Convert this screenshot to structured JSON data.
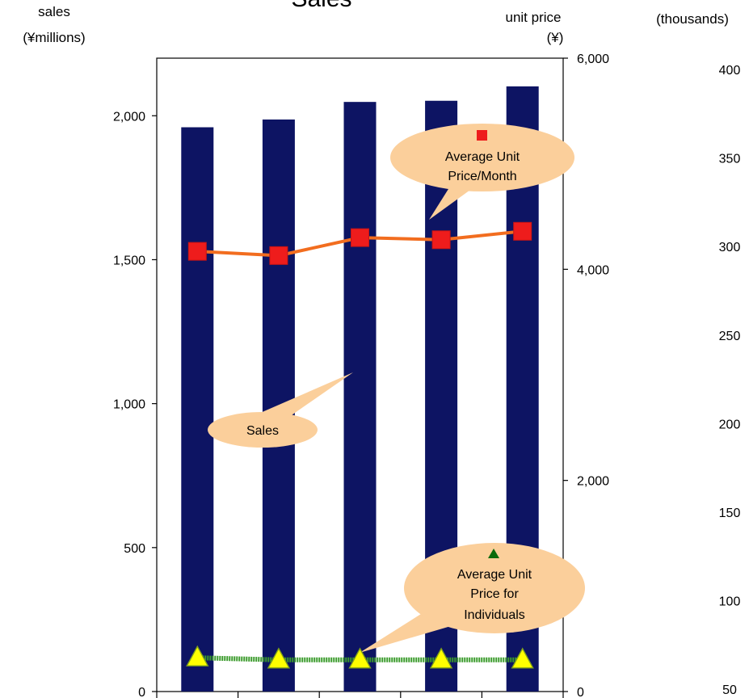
{
  "chart_data": {
    "type": "bar",
    "title": "Sales",
    "left_axis": {
      "label_line1": "sales",
      "label_line2": "(¥millions)",
      "ylim": [
        0,
        2200
      ],
      "ticks": [
        "0",
        "500",
        "1,000",
        "1,500",
        "2,000"
      ],
      "tick_values": [
        0,
        500,
        1000,
        1500,
        2000
      ]
    },
    "right_axis": {
      "label_line1": "unit price",
      "label_line2": "(¥)",
      "ylim": [
        0,
        6000
      ],
      "ticks": [
        "0",
        "2,000",
        "4,000",
        "6,000"
      ],
      "tick_values": [
        0,
        2000,
        4000,
        6000
      ]
    },
    "far_right_axis": {
      "label": "(thousands)",
      "ticks": [
        "50",
        "100",
        "150",
        "200",
        "250",
        "300",
        "350",
        "400"
      ]
    },
    "categories": [
      "",
      "",
      "",
      "",
      ""
    ],
    "series": [
      {
        "name": "Sales",
        "kind": "bar",
        "axis": "left",
        "color": "#0d1463",
        "values": [
          1960,
          1987,
          2048,
          2052,
          2102
        ]
      },
      {
        "name": "Average Unit Price/Month",
        "kind": "line",
        "axis": "right",
        "color": "#f26d1f",
        "marker": "square",
        "marker_color": "#ee1c1c",
        "values": [
          4170,
          4130,
          4300,
          4280,
          4360
        ]
      },
      {
        "name": "Average Unit Price for Individuals",
        "kind": "line",
        "axis": "right",
        "color": "#3b9b2c",
        "marker": "triangle",
        "marker_color": "#ffff00",
        "values": [
          320,
          300,
          300,
          300,
          300
        ]
      }
    ],
    "callouts": {
      "sales": "Sales",
      "unit_price_month": [
        "Average Unit",
        "Price/Month"
      ],
      "unit_price_individuals": [
        "Average Unit",
        "Price for",
        "Individuals"
      ]
    },
    "callout_color": "#fbcf9b",
    "grid": false
  }
}
